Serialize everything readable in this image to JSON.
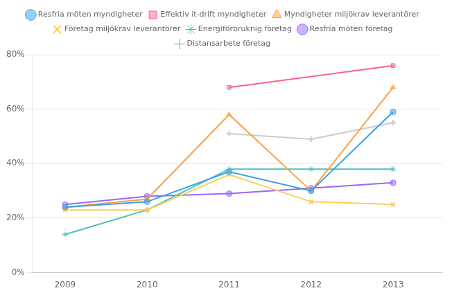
{
  "chart_data": {
    "type": "line",
    "x": [
      2009,
      2010,
      2011,
      2012,
      2013
    ],
    "series": [
      {
        "name": "Resfria möten myndigheter",
        "values": [
          0.24,
          0.26,
          0.37,
          0.3,
          0.59
        ],
        "marker": "circle"
      },
      {
        "name": "Effektiv it-drift myndigheter",
        "values": [
          null,
          null,
          0.68,
          null,
          0.76
        ],
        "marker": "square"
      },
      {
        "name": "Myndigheter miljökrav leverantörer",
        "values": [
          0.24,
          0.27,
          0.58,
          0.3,
          0.68
        ],
        "marker": "triangle"
      },
      {
        "name": "Företag miljökrav leverantörer",
        "values": [
          0.23,
          0.23,
          0.36,
          0.26,
          0.25
        ],
        "marker": "x"
      },
      {
        "name": "Energiförbruknig företag",
        "values": [
          0.14,
          0.23,
          0.38,
          0.38,
          0.38
        ],
        "marker": "star"
      },
      {
        "name": "Resfria möten företag",
        "values": [
          0.25,
          0.28,
          0.29,
          0.31,
          0.33
        ],
        "marker": "circle"
      },
      {
        "name": "Distansarbete företag",
        "values": [
          null,
          null,
          0.51,
          0.49,
          0.55
        ],
        "marker": "plus"
      }
    ],
    "xlim": [
      2008.6,
      2013.6
    ],
    "xticks": [
      2009,
      2010,
      2011,
      2012,
      2013
    ],
    "ylim": [
      0,
      0.8
    ],
    "yticks": [
      {
        "value": 0.0,
        "label": "0%"
      },
      {
        "value": 0.2,
        "label": "20%"
      },
      {
        "value": 0.4,
        "label": "40%"
      },
      {
        "value": 0.6,
        "label": "60%"
      },
      {
        "value": 0.8,
        "label": "80%"
      }
    ],
    "grid": true,
    "legend": "top"
  }
}
